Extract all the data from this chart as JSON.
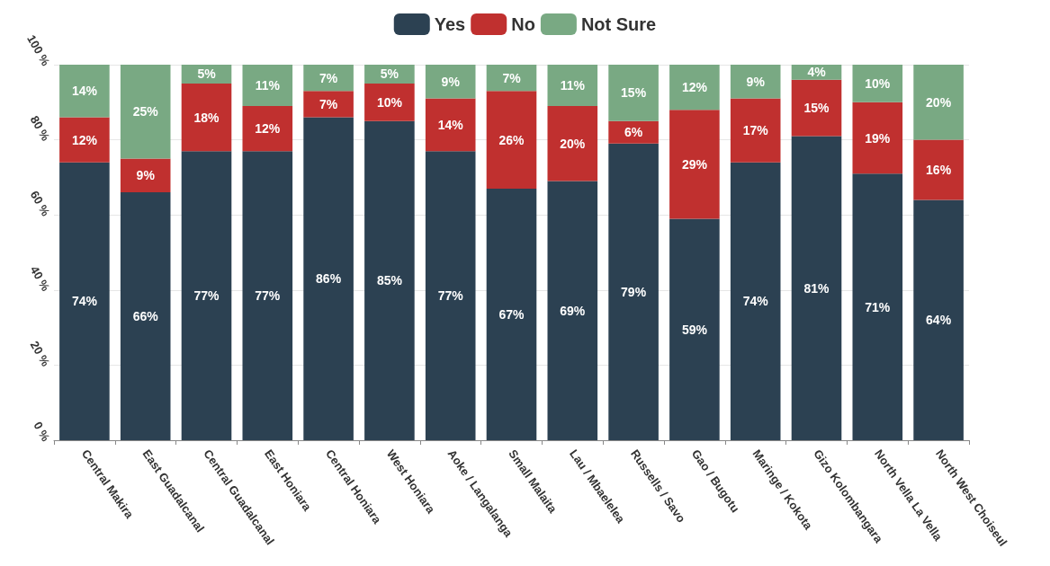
{
  "chart_data": {
    "type": "bar",
    "stacked": true,
    "categories": [
      "Central Makira",
      "East Guadalcanal",
      "Central Guadalcanal",
      "East Honiara",
      "Central Honiara",
      "West Honiara",
      "Aoke / Langalanga",
      "Small Malaita",
      "Lau / Mbaelelea",
      "Russells / Savo",
      "Gao / Bugotu",
      "Maringe / Kokota",
      "Gizo Kolombangara",
      "North Vella La Vella",
      "North West Choiseul"
    ],
    "series": [
      {
        "name": "Yes",
        "color": "#2c4152",
        "values": [
          74,
          66,
          77,
          77,
          86,
          85,
          77,
          67,
          69,
          79,
          59,
          74,
          81,
          71,
          64
        ],
        "value_labels": [
          "74%",
          "66%",
          "77%",
          "77%",
          "86%",
          "85%",
          "77%",
          "67%",
          "69%",
          "79%",
          "59%",
          "74%",
          "81%",
          "71%",
          "64%"
        ]
      },
      {
        "name": "No",
        "color": "#c0302f",
        "values": [
          12,
          9,
          18,
          12,
          7,
          10,
          14,
          26,
          20,
          6,
          29,
          17,
          15,
          19,
          16
        ],
        "value_labels": [
          "12%",
          "9%",
          "18%",
          "12%",
          "7%",
          "10%",
          "14%",
          "26%",
          "20%",
          "6%",
          "29%",
          "17%",
          "15%",
          "19%",
          "16%"
        ]
      },
      {
        "name": "Not Sure",
        "color": "#79a983",
        "values": [
          14,
          25,
          5,
          11,
          7,
          5,
          9,
          7,
          11,
          15,
          12,
          9,
          4,
          10,
          20
        ],
        "value_labels": [
          "14%",
          "25%",
          "5%",
          "11%",
          "7%",
          "5%",
          "9%",
          "7%",
          "11%",
          "15%",
          "12%",
          "9%",
          "4%",
          "10%",
          "20%"
        ]
      }
    ],
    "ylim": [
      0,
      100
    ],
    "yticks": [
      {
        "value": 0,
        "label": "0 %"
      },
      {
        "value": 20,
        "label": "20 %"
      },
      {
        "value": 40,
        "label": "40 %"
      },
      {
        "value": 60,
        "label": "60 %"
      },
      {
        "value": 80,
        "label": "80 %"
      },
      {
        "value": 100,
        "label": "100 %"
      }
    ],
    "grid": "y",
    "legend": "top"
  }
}
